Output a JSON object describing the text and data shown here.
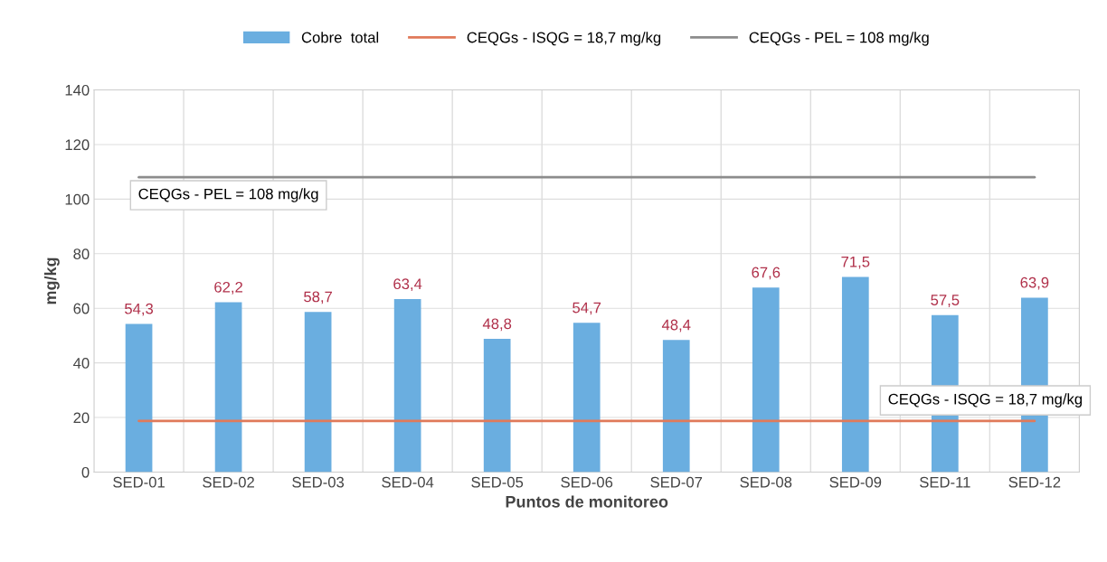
{
  "chart_data": {
    "type": "bar",
    "xlabel": "Puntos de monitoreo",
    "ylabel": "mg/kg",
    "categories": [
      "SED-01",
      "SED-02",
      "SED-03",
      "SED-04",
      "SED-05",
      "SED-06",
      "SED-07",
      "SED-08",
      "SED-09",
      "SED-11",
      "SED-12"
    ],
    "series": [
      {
        "name": "Cobre  total",
        "color": "#6aaee0",
        "values": [
          54.3,
          62.2,
          58.7,
          63.4,
          48.8,
          54.7,
          48.4,
          67.6,
          71.5,
          57.5,
          63.9
        ],
        "value_labels": [
          "54,3",
          "62,2",
          "58,7",
          "63,4",
          "48,8",
          "54,7",
          "48,4",
          "67,6",
          "71,5",
          "57,5",
          "63,9"
        ]
      }
    ],
    "ref_lines": [
      {
        "axis": "y",
        "value": 18.7,
        "label": "CEQGs - ISQG = 18,7 mg/kg",
        "color": "#e07a5a",
        "line_style": "solid"
      },
      {
        "axis": "y",
        "value": 108,
        "label": "CEQGs - PEL = 108 mg/kg",
        "color": "#8c8c8c",
        "line_style": "solid"
      }
    ],
    "ylim": [
      0,
      140
    ],
    "yticks": [
      0,
      20,
      40,
      60,
      80,
      100,
      120,
      140
    ],
    "grid": true,
    "legend": "top"
  }
}
